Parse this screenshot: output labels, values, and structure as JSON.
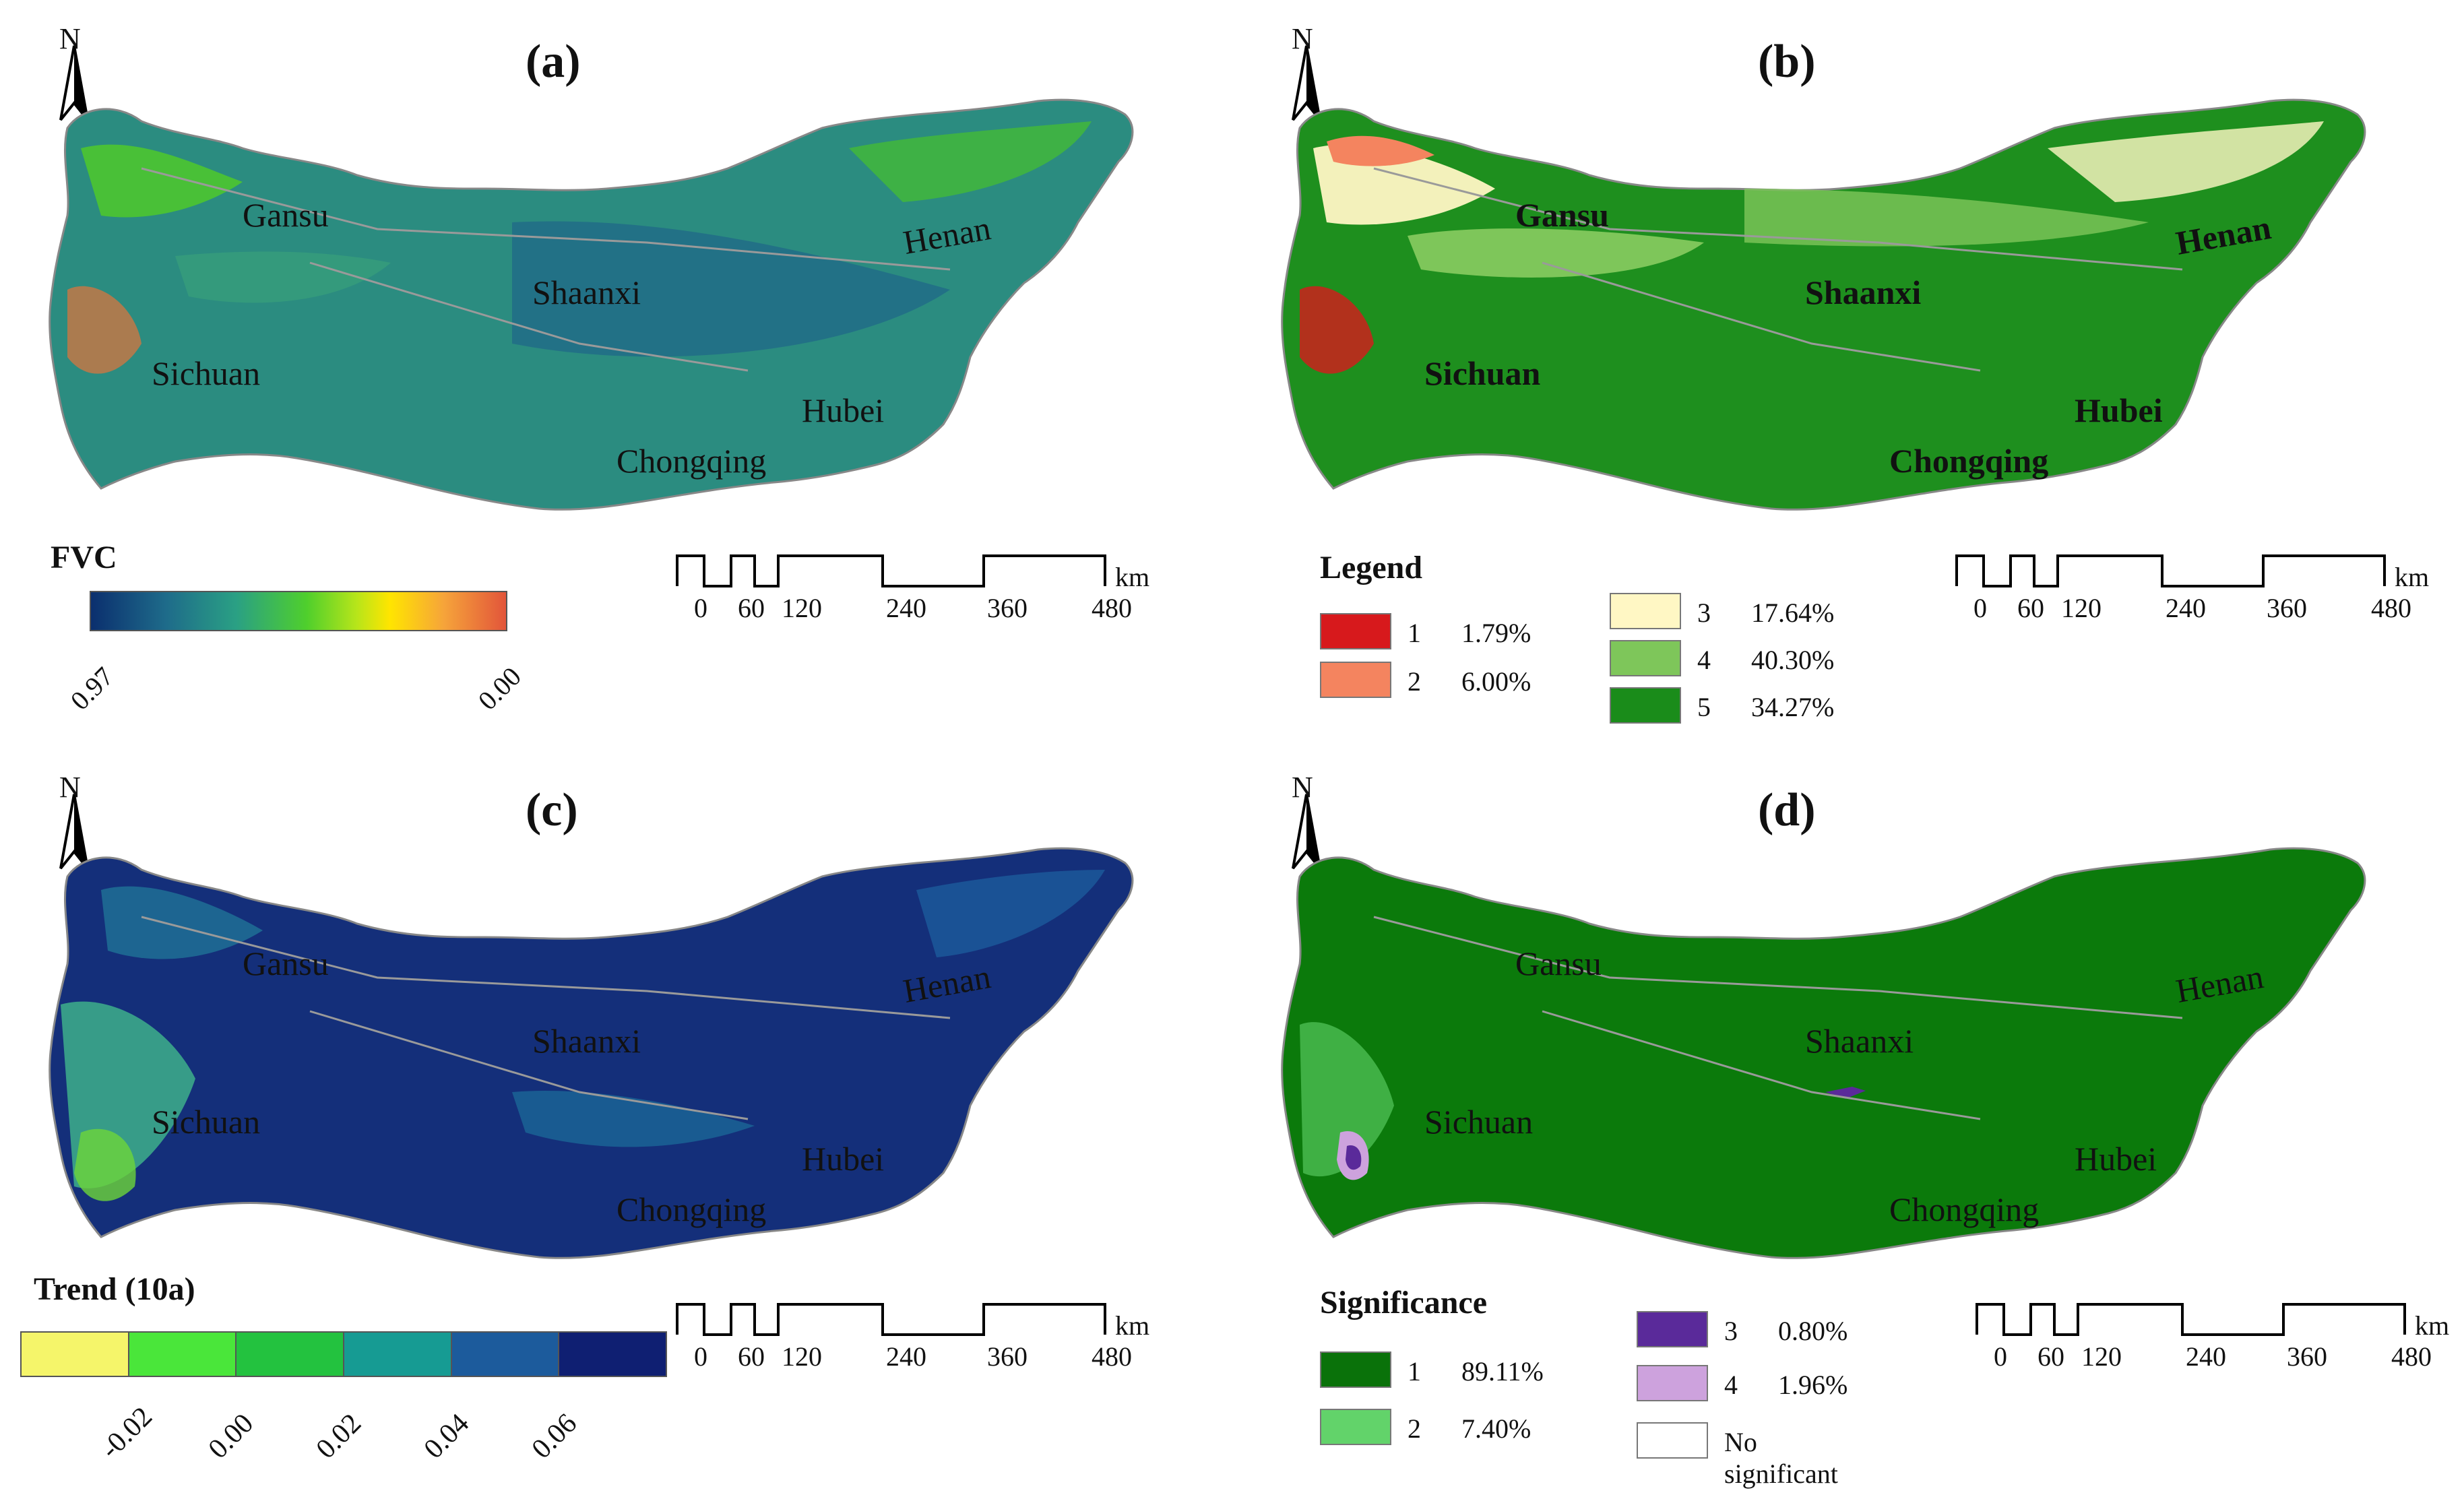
{
  "north_letter": "N",
  "scalebar": {
    "ticks": [
      "0",
      "60",
      "120",
      "240",
      "360",
      "480"
    ],
    "unit": "km"
  },
  "provinces": [
    "Gansu",
    "Shaanxi",
    "Henan",
    "Sichuan",
    "Hubei",
    "Chongqing"
  ],
  "panel_a": {
    "label": "(a)",
    "legend_title": "FVC",
    "colorbar_min_label": "0.97",
    "colorbar_max_label": "0.00"
  },
  "panel_b": {
    "label": "(b)",
    "legend_title": "Legend",
    "classes": [
      {
        "id": "1",
        "pct": "1.79%",
        "color": "#d7191c"
      },
      {
        "id": "2",
        "pct": "6.00%",
        "color": "#f4845f"
      },
      {
        "id": "3",
        "pct": "17.64%",
        "color": "#fff7c4"
      },
      {
        "id": "4",
        "pct": "40.30%",
        "color": "#7ec65a"
      },
      {
        "id": "5",
        "pct": "34.27%",
        "color": "#1a8c1a"
      }
    ]
  },
  "panel_c": {
    "label": "(c)",
    "legend_title": "Trend (10a)",
    "segment_colors": [
      "#f5f56a",
      "#4ae63a",
      "#23c23f",
      "#169b93",
      "#1c5b9c",
      "#0f1f72"
    ],
    "tick_labels": [
      "-0.02",
      "0.00",
      "0.02",
      "0.04",
      "0.06"
    ]
  },
  "panel_d": {
    "label": "(d)",
    "legend_title": "Significance",
    "classes": [
      {
        "id": "1",
        "pct": "89.11%",
        "color": "#0a720a"
      },
      {
        "id": "2",
        "pct": "7.40%",
        "color": "#62d36a"
      },
      {
        "id": "3",
        "pct": "0.80%",
        "color": "#5a2a9a"
      },
      {
        "id": "4",
        "pct": "1.96%",
        "color": "#cda2dd"
      }
    ],
    "no_sig_label": "No significant",
    "no_sig_color": "#ffffff"
  },
  "map_fill": {
    "a": "#2f8a86",
    "b": "#1e8f1e",
    "c": "#17347f",
    "d": "#0b7a0b"
  }
}
